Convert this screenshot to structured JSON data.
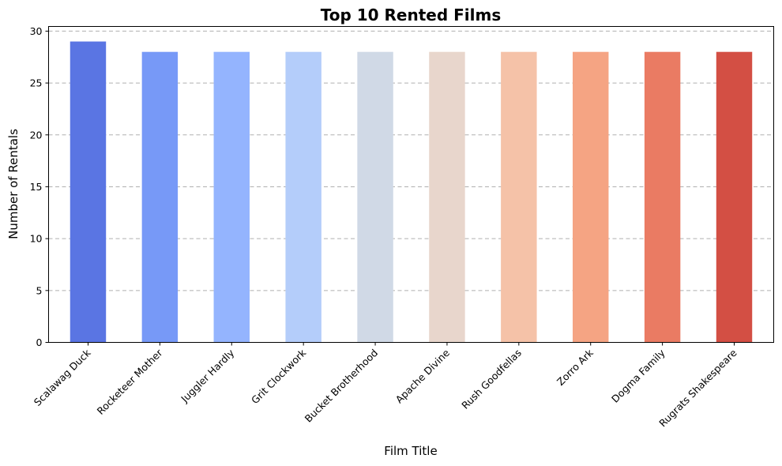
{
  "chart_data": {
    "type": "bar",
    "title": "Top 10 Rented Films",
    "xlabel": "Film Title",
    "ylabel": "Number of Rentals",
    "categories": [
      "Scalawag Duck",
      "Rocketeer Mother",
      "Juggler Hardly",
      "Grit Clockwork",
      "Bucket Brotherhood",
      "Apache Divine",
      "Rush Goodfellas",
      "Zorro Ark",
      "Dogma Family",
      "Rugrats Shakespeare"
    ],
    "values": [
      29,
      28,
      28,
      28,
      28,
      28,
      28,
      28,
      28,
      28
    ],
    "colors": [
      "#5a75e3",
      "#7799f7",
      "#94b4fe",
      "#b4cdfa",
      "#d0d9e6",
      "#e8d6cc",
      "#f5c2a8",
      "#f5a483",
      "#ea7b63",
      "#d34f44"
    ],
    "ylim": [
      0,
      30.45
    ],
    "yticks": [
      0,
      5,
      10,
      15,
      20,
      25,
      30
    ],
    "grid": "y-dashed",
    "legend": "none"
  }
}
